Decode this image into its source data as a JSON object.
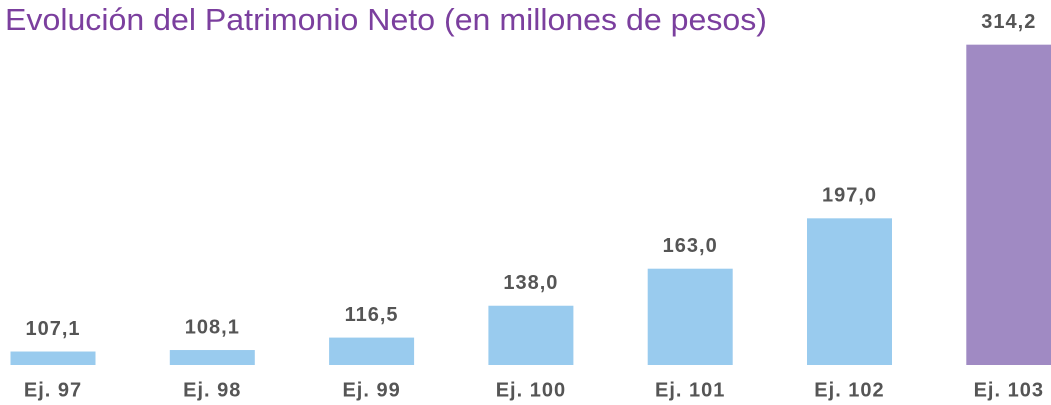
{
  "chart_data": {
    "type": "bar",
    "title": "Evolución del Patrimonio Neto (en millones de pesos)",
    "categories": [
      "Ej. 97",
      "Ej. 98",
      "Ej. 99",
      "Ej. 100",
      "Ej. 101",
      "Ej. 102",
      "Ej. 103"
    ],
    "values": [
      107.1,
      108.1,
      116.5,
      138.0,
      163.0,
      197.0,
      314.2
    ],
    "value_labels": [
      "107,1",
      "108,1",
      "116,5",
      "138,0",
      "163,0",
      "197,0",
      "314,2"
    ],
    "colors": [
      "#99cbee",
      "#99cbee",
      "#99cbee",
      "#99cbee",
      "#99cbee",
      "#99cbee",
      "#a08ac3"
    ],
    "ylim": [
      98,
      316
    ]
  }
}
